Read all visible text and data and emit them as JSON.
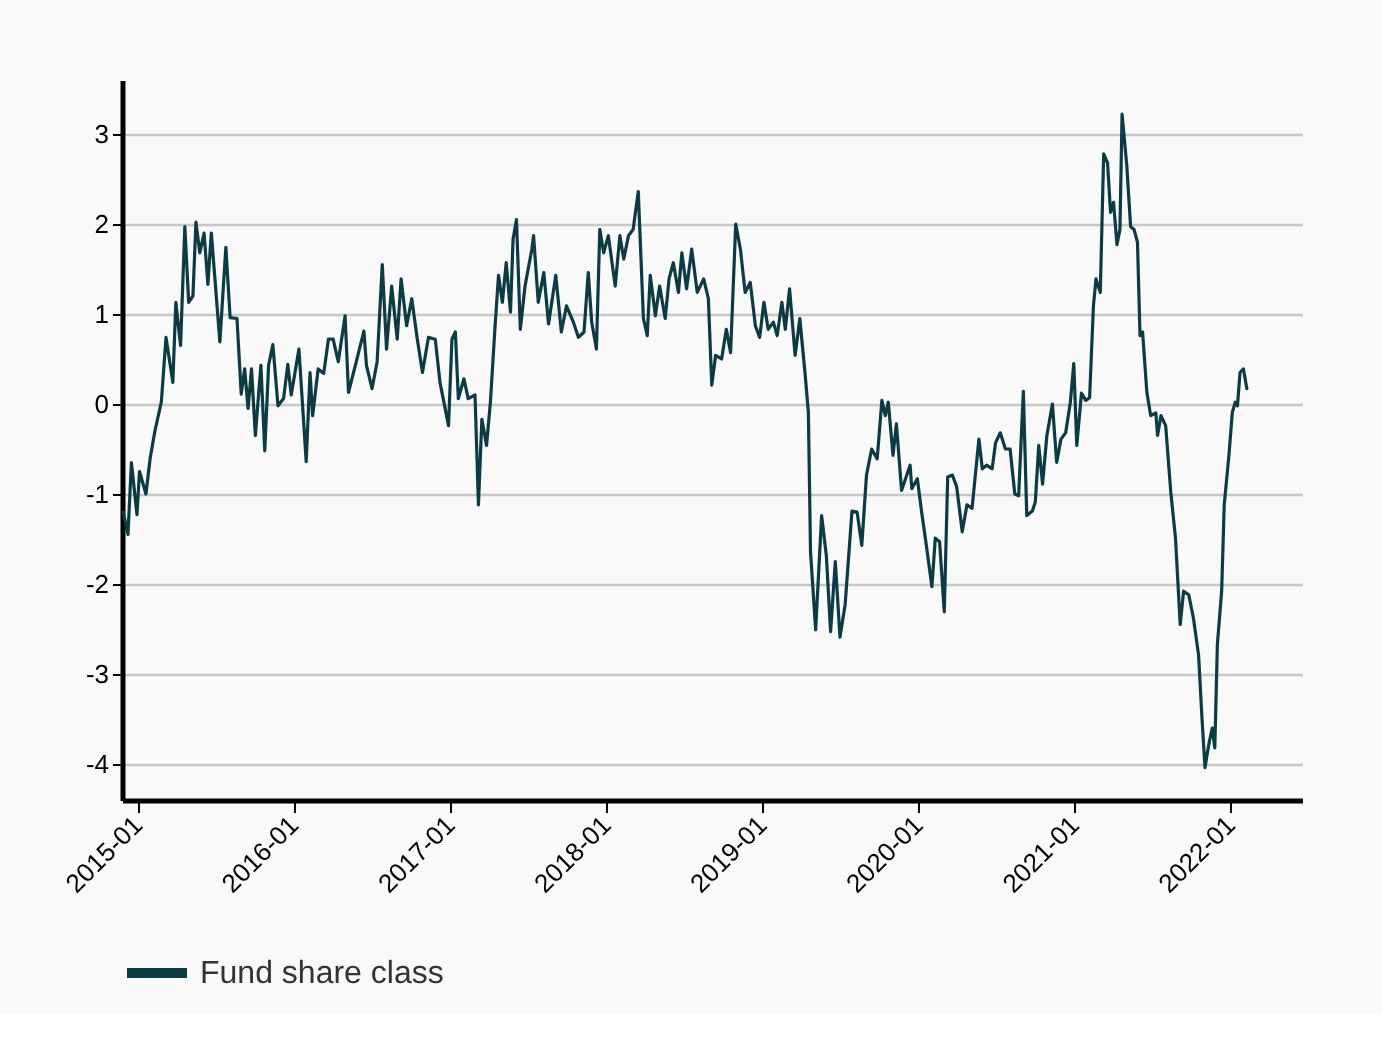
{
  "chart_data": {
    "type": "line",
    "x": [
      "2014-11-29",
      "2014-12-10",
      "2014-12-18",
      "2014-12-31",
      "2015-01-06",
      "2015-01-21",
      "2015-01-31",
      "2015-02-11",
      "2015-02-26",
      "2015-03-09",
      "2015-03-25",
      "2015-04-01",
      "2015-04-12",
      "2015-04-22",
      "2015-05-01",
      "2015-05-11",
      "2015-05-18",
      "2015-05-27",
      "2015-06-06",
      "2015-06-15",
      "2015-06-23",
      "2015-07-13",
      "2015-07-27",
      "2015-08-06",
      "2015-08-22",
      "2015-09-01",
      "2015-09-09",
      "2015-09-17",
      "2015-09-25",
      "2015-10-04",
      "2015-10-17",
      "2015-10-26",
      "2015-11-04",
      "2015-11-14",
      "2015-11-26",
      "2015-12-09",
      "2015-12-19",
      "2015-12-27",
      "2016-01-14",
      "2016-01-31",
      "2016-02-09",
      "2016-02-15",
      "2016-02-28",
      "2016-03-12",
      "2016-03-23",
      "2016-04-03",
      "2016-04-15",
      "2016-05-01",
      "2016-05-09",
      "2016-05-25",
      "2016-06-14",
      "2016-06-20",
      "2016-07-03",
      "2016-07-15",
      "2016-07-27",
      "2016-08-06",
      "2016-08-18",
      "2016-08-31",
      "2016-09-09",
      "2016-09-22",
      "2016-10-04",
      "2016-10-17",
      "2016-10-29",
      "2016-11-12",
      "2016-11-28",
      "2016-12-09",
      "2016-12-29",
      "2017-01-06",
      "2017-01-14",
      "2017-01-21",
      "2017-02-03",
      "2017-02-13",
      "2017-03-01",
      "2017-03-09",
      "2017-03-17",
      "2017-03-28",
      "2017-04-06",
      "2017-04-17",
      "2017-04-25",
      "2017-05-04",
      "2017-05-13",
      "2017-05-23",
      "2017-05-29",
      "2017-06-06",
      "2017-06-15",
      "2017-06-26",
      "2017-07-12",
      "2017-07-16",
      "2017-07-27",
      "2017-08-09",
      "2017-08-20",
      "2017-09-06",
      "2017-09-19",
      "2017-10-01",
      "2017-10-17",
      "2017-10-29",
      "2017-11-11",
      "2017-11-21",
      "2017-11-29",
      "2017-12-10",
      "2017-12-18",
      "2017-12-27",
      "2018-01-07",
      "2018-01-23",
      "2018-02-03",
      "2018-02-12",
      "2018-02-23",
      "2018-03-06",
      "2018-03-18",
      "2018-03-30",
      "2018-04-08",
      "2018-04-15",
      "2018-04-27",
      "2018-05-07",
      "2018-05-20",
      "2018-05-29",
      "2018-06-08",
      "2018-06-20",
      "2018-06-28",
      "2018-07-09",
      "2018-07-21",
      "2018-08-03",
      "2018-08-18",
      "2018-08-29",
      "2018-09-06",
      "2018-09-15",
      "2018-09-29",
      "2018-10-10",
      "2018-10-20",
      "2018-11-01",
      "2018-11-12",
      "2018-11-23",
      "2018-12-05",
      "2018-12-17",
      "2018-12-27",
      "2019-01-06",
      "2019-01-16",
      "2019-01-28",
      "2019-02-06",
      "2019-02-17",
      "2019-02-25",
      "2019-03-07",
      "2019-03-20",
      "2019-03-31",
      "2019-04-12",
      "2019-04-20",
      "2019-04-25",
      "2019-05-07",
      "2019-05-21",
      "2019-06-01",
      "2019-06-11",
      "2019-06-22",
      "2019-07-03",
      "2019-07-15",
      "2019-07-31",
      "2019-08-12",
      "2019-08-23",
      "2019-09-03",
      "2019-09-15",
      "2019-09-28",
      "2019-10-09",
      "2019-10-17",
      "2019-10-24",
      "2019-11-04",
      "2019-11-12",
      "2019-11-24",
      "2019-12-14",
      "2019-12-18",
      "2019-12-31",
      "2020-01-10",
      "2020-01-21",
      "2020-02-03",
      "2020-02-11",
      "2020-02-21",
      "2020-03-03",
      "2020-03-11",
      "2020-03-22",
      "2020-04-01",
      "2020-04-14",
      "2020-04-25",
      "2020-05-07",
      "2020-05-23",
      "2020-05-31",
      "2020-06-10",
      "2020-06-23",
      "2020-07-01",
      "2020-07-12",
      "2020-07-24",
      "2020-08-04",
      "2020-08-15",
      "2020-08-24",
      "2020-09-04",
      "2020-09-12",
      "2020-09-25",
      "2020-10-02",
      "2020-10-10",
      "2020-10-19",
      "2020-10-29",
      "2020-11-11",
      "2020-11-21",
      "2020-12-01",
      "2020-12-12",
      "2020-12-23",
      "2020-12-31",
      "2021-01-07",
      "2021-01-18",
      "2021-01-28",
      "2021-02-06",
      "2021-02-15",
      "2021-02-21",
      "2021-03-03",
      "2021-03-11",
      "2021-03-20",
      "2021-03-27",
      "2021-04-03",
      "2021-04-11",
      "2021-04-18",
      "2021-04-23",
      "2021-05-04",
      "2021-05-13",
      "2021-05-21",
      "2021-05-29",
      "2021-06-04",
      "2021-06-10",
      "2021-06-20",
      "2021-06-29",
      "2021-07-11",
      "2021-07-15",
      "2021-07-23",
      "2021-08-03",
      "2021-08-15",
      "2021-08-26",
      "2021-09-06",
      "2021-09-14",
      "2021-09-26",
      "2021-10-07",
      "2021-10-19",
      "2021-10-27",
      "2021-11-03",
      "2021-11-12",
      "2021-11-20",
      "2021-11-26",
      "2021-12-02",
      "2021-12-12",
      "2021-12-18",
      "2021-12-29",
      "2022-01-06",
      "2022-01-13",
      "2022-01-18",
      "2022-01-24",
      "2022-02-01",
      "2022-02-09"
    ],
    "series": [
      {
        "name": "Fund share class",
        "color": "#0d3b44",
        "values": [
          -1.2,
          -1.45,
          -0.65,
          -1.23,
          -0.75,
          -1.0,
          -0.6,
          -0.3,
          0.02,
          0.74,
          0.24,
          1.13,
          0.65,
          1.97,
          1.13,
          1.2,
          2.02,
          1.68,
          1.9,
          1.33,
          1.9,
          0.69,
          1.74,
          0.96,
          0.95,
          0.11,
          0.39,
          -0.05,
          0.39,
          -0.35,
          0.43,
          -0.52,
          0.43,
          0.66,
          -0.02,
          0.06,
          0.44,
          0.1,
          0.61,
          -0.64,
          0.35,
          -0.13,
          0.39,
          0.34,
          0.72,
          0.72,
          0.47,
          0.98,
          0.13,
          0.43,
          0.81,
          0.43,
          0.17,
          0.47,
          1.55,
          0.61,
          1.31,
          0.72,
          1.39,
          0.87,
          1.17,
          0.72,
          0.35,
          0.74,
          0.72,
          0.24,
          -0.24,
          0.72,
          0.8,
          0.06,
          0.28,
          0.06,
          0.1,
          -1.12,
          -0.17,
          -0.46,
          0.02,
          0.87,
          1.43,
          1.13,
          1.57,
          1.02,
          1.83,
          2.05,
          0.83,
          1.31,
          1.72,
          1.87,
          1.13,
          1.46,
          0.89,
          1.43,
          0.8,
          1.09,
          0.91,
          0.74,
          0.8,
          1.46,
          0.91,
          0.61,
          1.94,
          1.68,
          1.87,
          1.31,
          1.87,
          1.61,
          1.87,
          1.94,
          2.36,
          0.95,
          0.76,
          1.43,
          0.98,
          1.31,
          0.95,
          1.39,
          1.57,
          1.24,
          1.68,
          1.28,
          1.72,
          1.24,
          1.39,
          1.17,
          0.21,
          0.54,
          0.5,
          0.83,
          0.57,
          2.0,
          1.72,
          1.24,
          1.35,
          0.87,
          0.74,
          1.13,
          0.83,
          0.91,
          0.76,
          1.13,
          0.83,
          1.28,
          0.54,
          0.95,
          0.35,
          -0.09,
          -1.64,
          -2.51,
          -1.24,
          -1.68,
          -2.53,
          -1.75,
          -2.59,
          -2.23,
          -1.19,
          -1.2,
          -1.57,
          -0.79,
          -0.5,
          -0.61,
          0.04,
          -0.13,
          0.02,
          -0.57,
          -0.22,
          -0.96,
          -0.68,
          -0.94,
          -0.83,
          -1.2,
          -1.57,
          -2.03,
          -1.49,
          -1.53,
          -2.31,
          -0.81,
          -0.79,
          -0.92,
          -1.42,
          -1.12,
          -1.16,
          -0.39,
          -0.72,
          -0.68,
          -0.72,
          -0.43,
          -0.32,
          -0.5,
          -0.5,
          -1.0,
          -1.02,
          0.14,
          -1.24,
          -1.19,
          -1.09,
          -0.46,
          -0.89,
          -0.35,
          0.0,
          -0.65,
          -0.39,
          -0.32,
          0.02,
          0.45,
          -0.46,
          0.12,
          0.04,
          0.07,
          1.09,
          1.39,
          1.24,
          2.78,
          2.68,
          2.13,
          2.24,
          1.77,
          1.94,
          3.22,
          2.65,
          1.97,
          1.94,
          1.8,
          0.76,
          0.8,
          0.13,
          -0.13,
          -0.1,
          -0.35,
          -0.13,
          -0.24,
          -0.98,
          -1.49,
          -2.45,
          -2.08,
          -2.12,
          -2.38,
          -2.79,
          -3.49,
          -4.04,
          -3.78,
          -3.6,
          -3.82,
          -2.67,
          -2.08,
          -1.12,
          -0.57,
          -0.09,
          0.02,
          -0.02,
          0.35,
          0.39,
          0.17
        ]
      }
    ],
    "xlim": [
      "2014-11-26",
      "2022-06-18"
    ],
    "xticks": [
      "2015-01",
      "2016-01",
      "2017-01",
      "2018-01",
      "2019-01",
      "2020-01",
      "2021-01",
      "2022-01"
    ],
    "ylim": [
      -4.4,
      3.6
    ],
    "yticks": [
      -4,
      -3,
      -2,
      -1,
      0,
      1,
      2,
      3
    ],
    "grid": "y",
    "legend": "bottom"
  }
}
